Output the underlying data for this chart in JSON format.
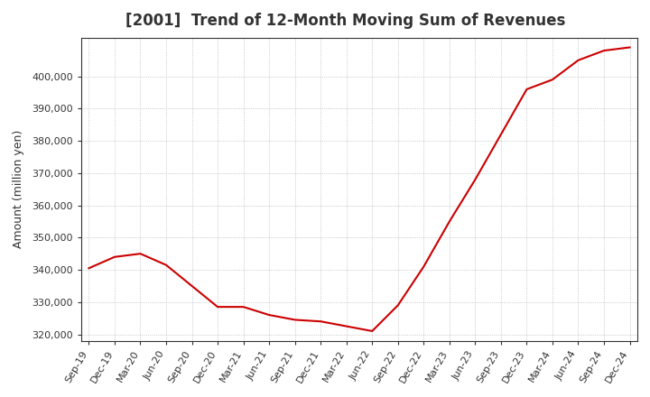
{
  "title": "[2001]  Trend of 12-Month Moving Sum of Revenues",
  "ylabel": "Amount (million yen)",
  "line_color": "#cc0000",
  "background_color": "#ffffff",
  "plot_bg_color": "#ffffff",
  "grid_color": "#aaaaaa",
  "ylim": [
    318000,
    412000
  ],
  "yticks": [
    320000,
    330000,
    340000,
    350000,
    360000,
    370000,
    380000,
    390000,
    400000
  ],
  "x_labels": [
    "Sep-19",
    "Dec-19",
    "Mar-20",
    "Jun-20",
    "Sep-20",
    "Dec-20",
    "Mar-21",
    "Jun-21",
    "Sep-21",
    "Dec-21",
    "Mar-22",
    "Jun-22",
    "Sep-22",
    "Dec-22",
    "Mar-23",
    "Jun-23",
    "Sep-23",
    "Dec-23",
    "Mar-24",
    "Jun-24",
    "Sep-24",
    "Dec-24"
  ],
  "values": [
    340500,
    344000,
    345000,
    341500,
    335000,
    328500,
    328500,
    326000,
    324500,
    324000,
    322500,
    321000,
    329000,
    341000,
    355000,
    368000,
    382000,
    396000,
    399000,
    405000,
    408000,
    409000
  ]
}
